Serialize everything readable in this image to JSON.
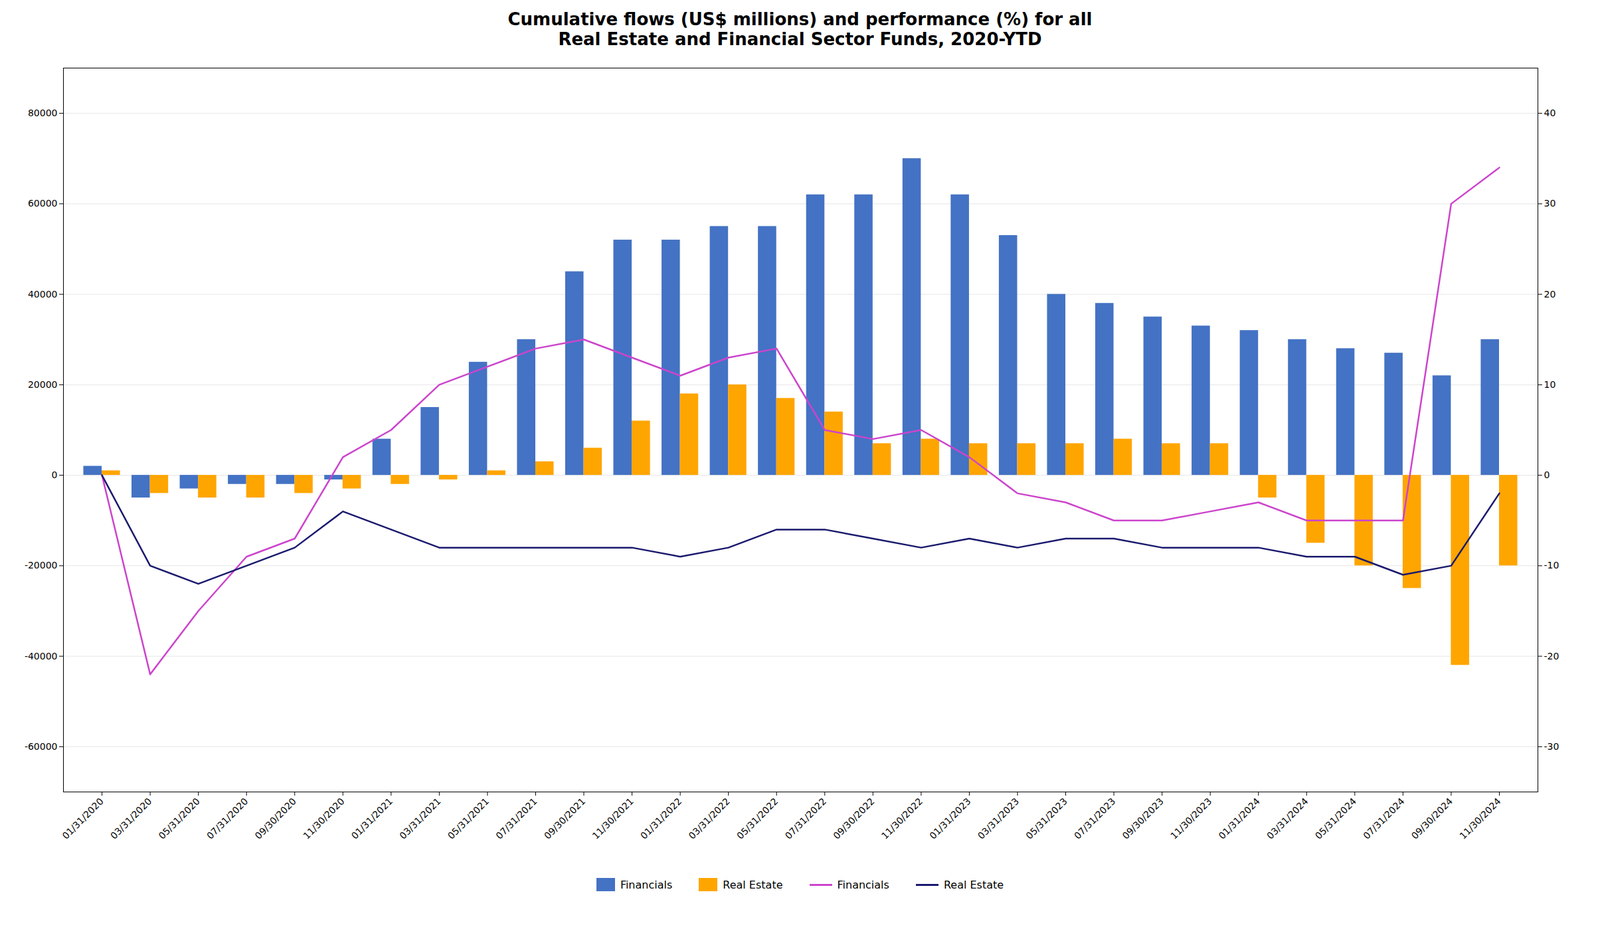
{
  "chart_data": {
    "type": "bar",
    "title": "Cumulative flows (US$ millions) and performance (%) for all\nReal Estate and Financial Sector Funds, 2020-YTD",
    "categories": [
      "01/31/2020",
      "03/31/2020",
      "05/31/2020",
      "07/31/2020",
      "09/30/2020",
      "11/30/2020",
      "01/31/2021",
      "03/31/2021",
      "05/31/2021",
      "07/31/2021",
      "09/30/2021",
      "11/30/2021",
      "01/31/2022",
      "03/31/2022",
      "05/31/2022",
      "07/31/2022",
      "09/30/2022",
      "11/30/2022",
      "01/31/2023",
      "03/31/2023",
      "05/31/2023",
      "07/31/2023",
      "09/30/2023",
      "11/30/2023",
      "01/31/2024",
      "03/31/2024",
      "05/31/2024",
      "07/31/2024",
      "09/30/2024",
      "11/30/2024"
    ],
    "series": [
      {
        "name": "Financials",
        "type": "bar",
        "color": "#4472c4",
        "values": [
          2000,
          -5000,
          -3000,
          -2000,
          -2000,
          -1000,
          8000,
          15000,
          25000,
          30000,
          45000,
          52000,
          52000,
          55000,
          55000,
          62000,
          62000,
          70000,
          62000,
          53000,
          40000,
          38000,
          35000,
          33000,
          32000,
          30000,
          28000,
          27000,
          22000,
          30000
        ]
      },
      {
        "name": "Real Estate",
        "type": "bar",
        "color": "#ffa500",
        "values": [
          1000,
          -4000,
          -5000,
          -5000,
          -4000,
          -3000,
          -2000,
          -1000,
          1000,
          3000,
          6000,
          12000,
          18000,
          20000,
          17000,
          14000,
          7000,
          8000,
          7000,
          7000,
          7000,
          8000,
          7000,
          7000,
          -5000,
          -15000,
          -20000,
          -25000,
          -42000,
          -20000
        ]
      },
      {
        "name": "Financials",
        "type": "line",
        "axis": "y2",
        "color": "#cc44cc",
        "values": [
          0,
          -22,
          -15,
          -9,
          -7,
          2,
          5,
          10,
          12,
          14,
          15,
          13,
          11,
          13,
          14,
          5,
          4,
          5,
          2,
          -2,
          -3,
          -5,
          -5,
          -4,
          -3,
          -5,
          -5,
          -5,
          30,
          34
        ]
      },
      {
        "name": "Real Estate",
        "type": "line",
        "axis": "y2",
        "color": "#1a1a6e",
        "values": [
          0,
          -10,
          -12,
          -10,
          -8,
          -4,
          -6,
          -8,
          -8,
          -8,
          -8,
          -8,
          -9,
          -8,
          -6,
          -6,
          -7,
          -8,
          -7,
          -8,
          -7,
          -7,
          -8,
          -8,
          -8,
          -9,
          -9,
          -11,
          -10,
          -2
        ]
      }
    ],
    "ylim": [
      -70000,
      90000
    ],
    "yticks": [
      -60000,
      -40000,
      -20000,
      0,
      20000,
      40000,
      60000,
      80000
    ],
    "y2lim": [
      -35,
      45
    ],
    "y2ticks": [
      -30,
      -20,
      -10,
      0,
      10,
      20,
      30,
      40
    ],
    "grid": true,
    "legend": "bottom"
  }
}
